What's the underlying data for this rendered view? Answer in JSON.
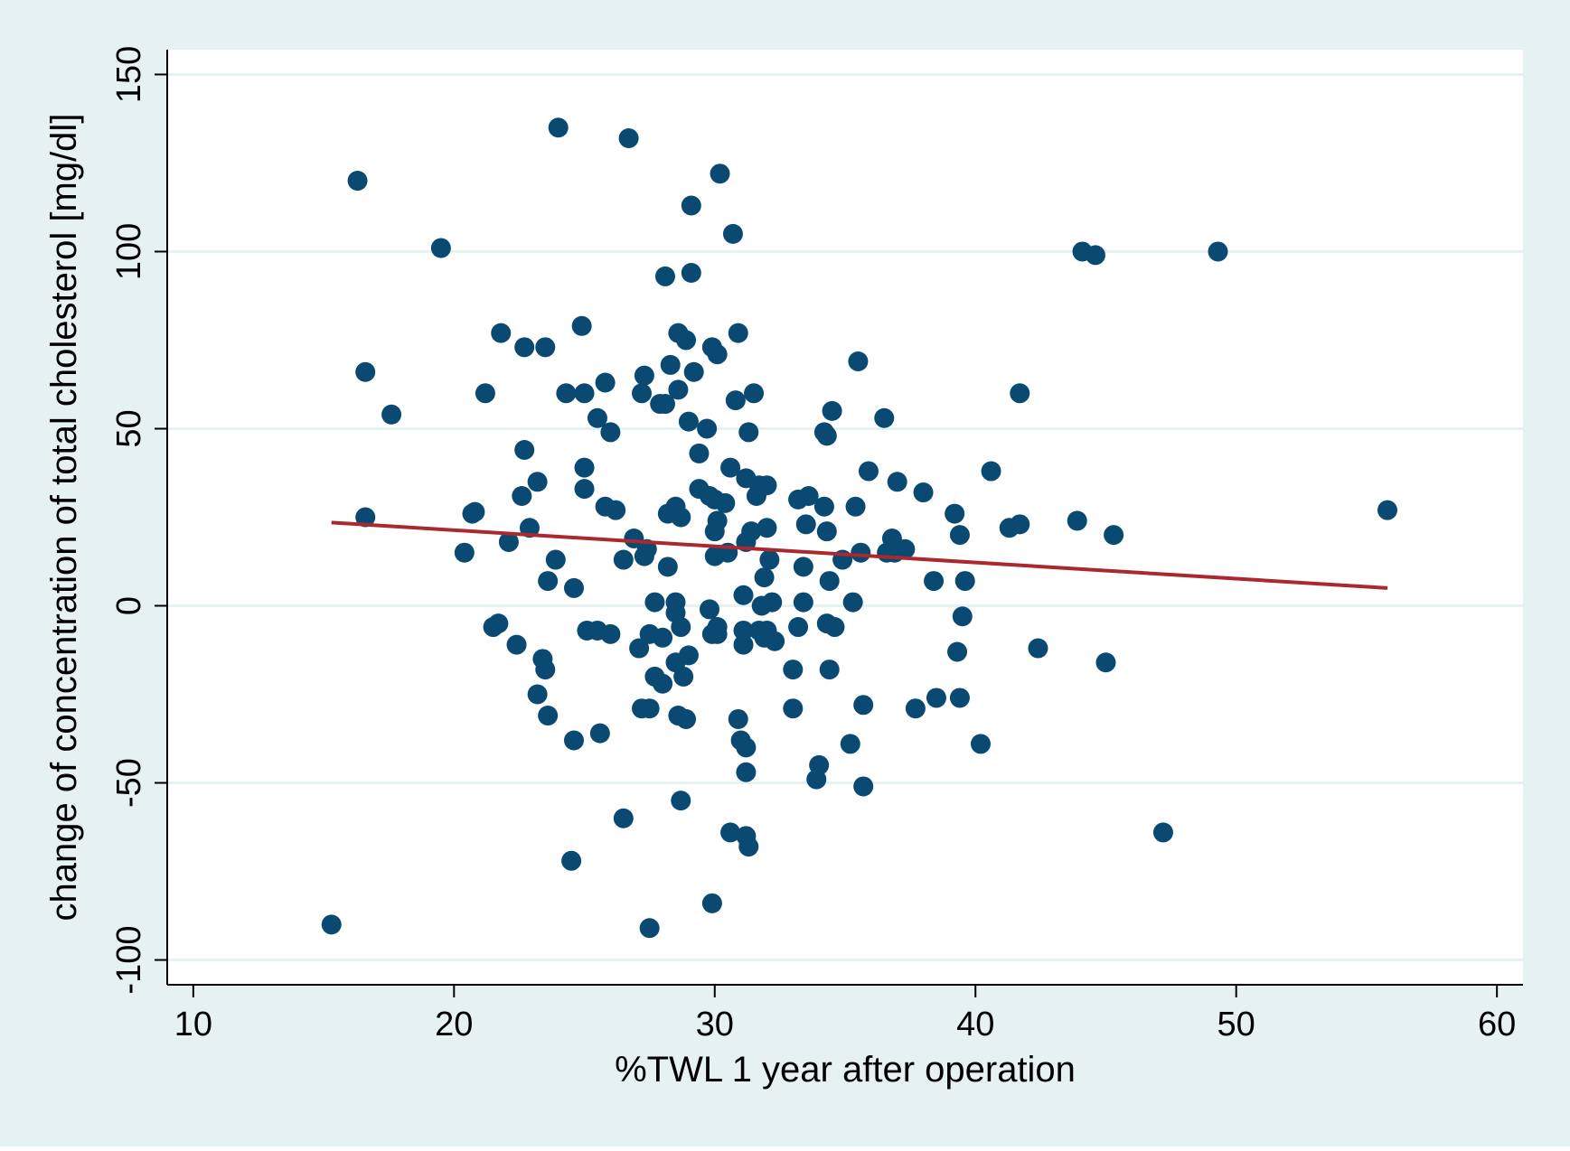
{
  "colors": {
    "outer_background": "#e6f1f1",
    "plot_background": "#ffffff",
    "grid": "#e6f1f1",
    "axis": "#000000",
    "marker": "#0a4a72",
    "fit_line": "#a8292e",
    "text": "#000000"
  },
  "chart_data": {
    "type": "scatter",
    "title": "",
    "xlabel": "%TWL 1 year after operation",
    "ylabel": "change of concentration of  total cholesterol [mg/dl]",
    "xlim": [
      9,
      61
    ],
    "ylim": [
      -107,
      157
    ],
    "xticks": [
      10,
      20,
      30,
      40,
      50,
      60
    ],
    "yticks": [
      -100,
      -50,
      0,
      50,
      100,
      150
    ],
    "xtick_labels": [
      "10",
      "20",
      "30",
      "40",
      "50",
      "60"
    ],
    "ytick_labels": [
      "-100",
      "-50",
      "0",
      "50",
      "100",
      "150"
    ],
    "grid": "horizontal",
    "legend": "none",
    "fit_line": {
      "x": [
        15.3,
        55.8
      ],
      "y": [
        23.5,
        5.0
      ]
    },
    "points": [
      [
        15.3,
        -90
      ],
      [
        16.3,
        120
      ],
      [
        16.6,
        66
      ],
      [
        16.6,
        25
      ],
      [
        17.6,
        54
      ],
      [
        19.5,
        101
      ],
      [
        20.4,
        15
      ],
      [
        20.7,
        26
      ],
      [
        20.8,
        26.5
      ],
      [
        21.2,
        60
      ],
      [
        21.5,
        -6
      ],
      [
        21.7,
        -5
      ],
      [
        21.8,
        77
      ],
      [
        22.1,
        18
      ],
      [
        22.4,
        -11
      ],
      [
        22.6,
        31
      ],
      [
        22.7,
        44
      ],
      [
        22.7,
        73
      ],
      [
        22.9,
        22
      ],
      [
        23.2,
        35
      ],
      [
        23.2,
        -25
      ],
      [
        23.4,
        -15
      ],
      [
        23.5,
        -18
      ],
      [
        23.5,
        73
      ],
      [
        23.6,
        -31
      ],
      [
        23.6,
        7
      ],
      [
        23.9,
        13
      ],
      [
        24.0,
        135
      ],
      [
        24.3,
        60
      ],
      [
        24.5,
        -72
      ],
      [
        24.6,
        -38
      ],
      [
        24.6,
        5
      ],
      [
        24.9,
        79
      ],
      [
        25.0,
        60
      ],
      [
        25.0,
        39
      ],
      [
        25.0,
        33
      ],
      [
        25.1,
        -7
      ],
      [
        25.5,
        53
      ],
      [
        25.5,
        -7
      ],
      [
        25.6,
        -36
      ],
      [
        25.8,
        63
      ],
      [
        25.8,
        28
      ],
      [
        26.0,
        49
      ],
      [
        26.0,
        -8
      ],
      [
        26.2,
        27
      ],
      [
        26.5,
        -60
      ],
      [
        26.5,
        13
      ],
      [
        26.7,
        132
      ],
      [
        26.9,
        19
      ],
      [
        27.1,
        -12
      ],
      [
        27.2,
        -29
      ],
      [
        27.2,
        60
      ],
      [
        27.3,
        65
      ],
      [
        27.3,
        14
      ],
      [
        27.4,
        16
      ],
      [
        27.5,
        -29
      ],
      [
        27.5,
        -8
      ],
      [
        27.5,
        -91
      ],
      [
        27.7,
        -20
      ],
      [
        27.7,
        1
      ],
      [
        27.9,
        57
      ],
      [
        28.0,
        -22
      ],
      [
        28.0,
        -9
      ],
      [
        28.1,
        57
      ],
      [
        28.1,
        93
      ],
      [
        28.2,
        26
      ],
      [
        28.2,
        11
      ],
      [
        28.3,
        68
      ],
      [
        28.5,
        1
      ],
      [
        28.5,
        -2
      ],
      [
        28.5,
        28
      ],
      [
        28.5,
        -16
      ],
      [
        28.6,
        77
      ],
      [
        28.6,
        -31
      ],
      [
        28.6,
        61
      ],
      [
        28.7,
        -55
      ],
      [
        28.7,
        25
      ],
      [
        28.7,
        -6
      ],
      [
        28.8,
        -20
      ],
      [
        28.9,
        75
      ],
      [
        28.9,
        -32
      ],
      [
        29.0,
        52
      ],
      [
        29.0,
        -14
      ],
      [
        29.1,
        113
      ],
      [
        29.1,
        94
      ],
      [
        29.2,
        66
      ],
      [
        29.4,
        43
      ],
      [
        29.4,
        33
      ],
      [
        29.7,
        50
      ],
      [
        29.8,
        31
      ],
      [
        29.8,
        -1
      ],
      [
        29.9,
        73
      ],
      [
        29.9,
        -8
      ],
      [
        29.9,
        -84
      ],
      [
        30.0,
        14
      ],
      [
        30.0,
        21
      ],
      [
        30.0,
        30
      ],
      [
        30.1,
        71
      ],
      [
        30.1,
        24
      ],
      [
        30.1,
        -6
      ],
      [
        30.1,
        -8
      ],
      [
        30.2,
        122
      ],
      [
        30.4,
        29
      ],
      [
        30.5,
        15
      ],
      [
        30.6,
        39
      ],
      [
        30.6,
        -64
      ],
      [
        30.7,
        105
      ],
      [
        30.8,
        58
      ],
      [
        30.9,
        77
      ],
      [
        30.9,
        -32
      ],
      [
        31.0,
        -38
      ],
      [
        31.1,
        -7
      ],
      [
        31.1,
        -11
      ],
      [
        31.1,
        3
      ],
      [
        31.2,
        18
      ],
      [
        31.2,
        -47
      ],
      [
        31.2,
        -65
      ],
      [
        31.2,
        -40
      ],
      [
        31.2,
        36
      ],
      [
        31.3,
        -68
      ],
      [
        31.3,
        49
      ],
      [
        31.4,
        21
      ],
      [
        31.5,
        60
      ],
      [
        31.6,
        31
      ],
      [
        31.7,
        -7
      ],
      [
        31.7,
        34
      ],
      [
        31.8,
        0
      ],
      [
        31.9,
        -9
      ],
      [
        31.9,
        8
      ],
      [
        32.0,
        22
      ],
      [
        32.0,
        34
      ],
      [
        32.0,
        -7
      ],
      [
        32.1,
        13
      ],
      [
        32.2,
        1
      ],
      [
        32.3,
        -10
      ],
      [
        33.0,
        -18
      ],
      [
        33.0,
        -29
      ],
      [
        33.2,
        30
      ],
      [
        33.2,
        -6
      ],
      [
        33.4,
        11
      ],
      [
        33.4,
        1
      ],
      [
        33.5,
        23
      ],
      [
        33.6,
        31
      ],
      [
        33.9,
        -49
      ],
      [
        34.0,
        -45
      ],
      [
        34.2,
        28
      ],
      [
        34.2,
        49
      ],
      [
        34.3,
        21
      ],
      [
        34.3,
        48
      ],
      [
        34.3,
        -5
      ],
      [
        34.4,
        -18
      ],
      [
        34.4,
        7
      ],
      [
        34.5,
        55
      ],
      [
        34.6,
        -6
      ],
      [
        34.9,
        13
      ],
      [
        35.2,
        -39
      ],
      [
        35.3,
        1
      ],
      [
        35.4,
        28
      ],
      [
        35.5,
        69
      ],
      [
        35.6,
        15
      ],
      [
        35.7,
        -51
      ],
      [
        35.7,
        -28
      ],
      [
        35.9,
        38
      ],
      [
        36.5,
        53
      ],
      [
        36.6,
        15
      ],
      [
        36.8,
        19
      ],
      [
        36.9,
        15
      ],
      [
        37.0,
        35
      ],
      [
        37.3,
        16
      ],
      [
        37.7,
        -29
      ],
      [
        38.0,
        32
      ],
      [
        38.4,
        7
      ],
      [
        38.5,
        -26
      ],
      [
        39.2,
        26
      ],
      [
        39.3,
        -13
      ],
      [
        39.4,
        20
      ],
      [
        39.4,
        -26
      ],
      [
        39.5,
        -3
      ],
      [
        39.6,
        7
      ],
      [
        40.2,
        -39
      ],
      [
        40.6,
        38
      ],
      [
        41.3,
        22
      ],
      [
        41.7,
        23
      ],
      [
        41.7,
        60
      ],
      [
        42.4,
        -12
      ],
      [
        43.9,
        24
      ],
      [
        44.1,
        100
      ],
      [
        44.6,
        99
      ],
      [
        45.0,
        -16
      ],
      [
        45.3,
        20
      ],
      [
        47.2,
        -64
      ],
      [
        49.3,
        100
      ],
      [
        55.8,
        27
      ]
    ]
  }
}
